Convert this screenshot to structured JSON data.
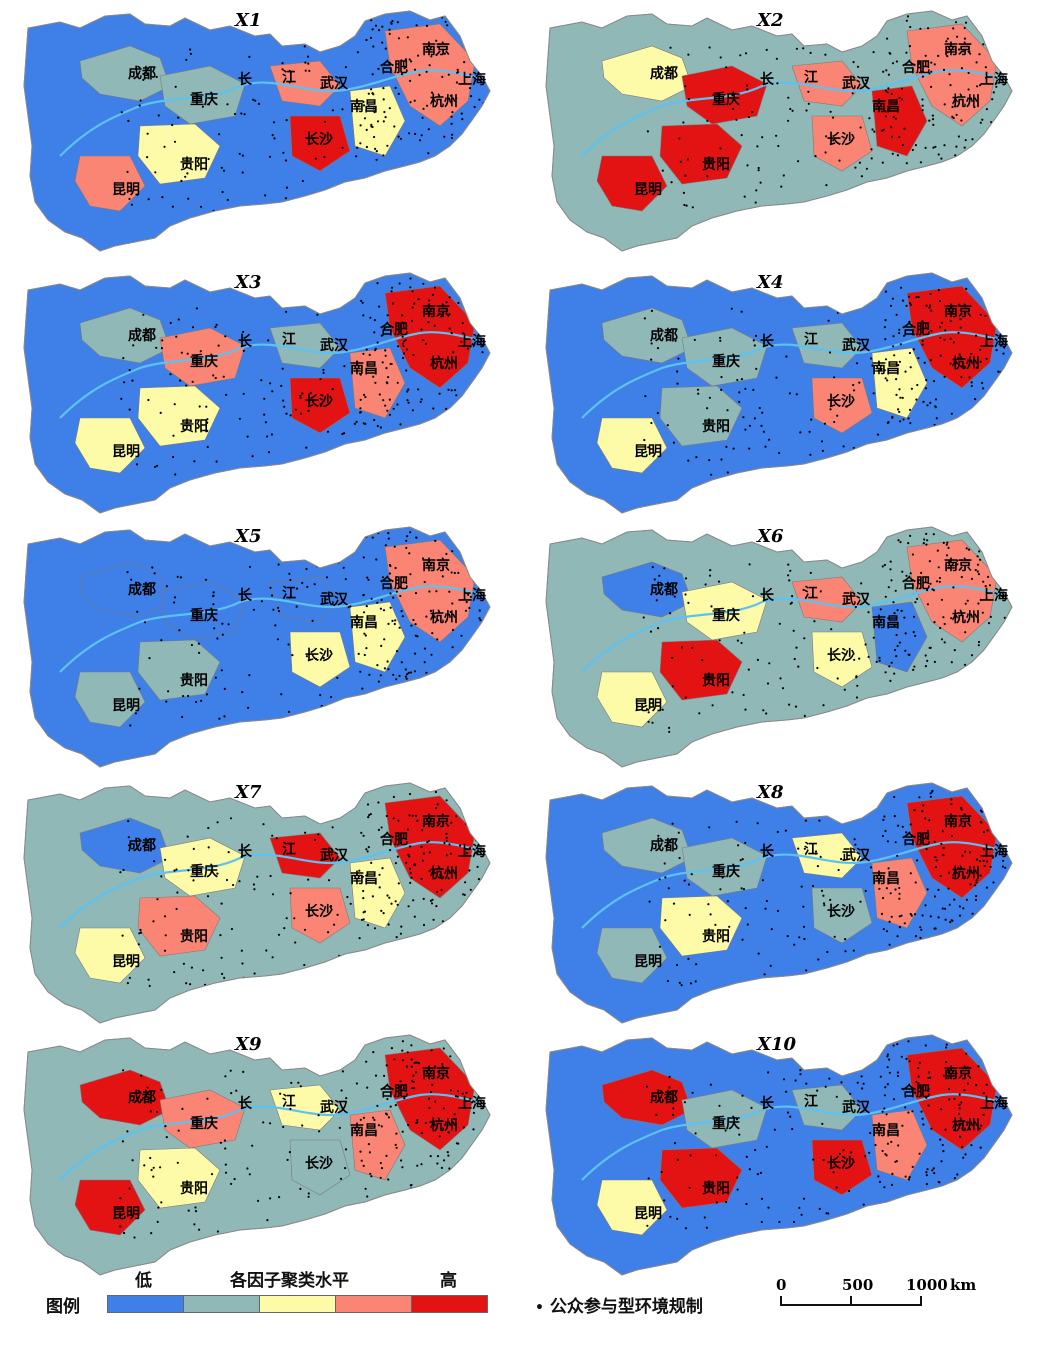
{
  "colors": {
    "low": "#3f7fe8",
    "mid_low": "#8fb8b7",
    "mid": "#fdfba7",
    "mid_high": "#fa8575",
    "high": "#e31313",
    "river": "#5cc2f2",
    "border": "#7b7b7b",
    "dot": "#000000"
  },
  "cities": [
    "成都",
    "重庆",
    "贵阳",
    "昆明",
    "长沙",
    "武汉",
    "南昌",
    "合肥",
    "南京",
    "杭州",
    "上海"
  ],
  "river_label": [
    "长",
    "江"
  ],
  "panels": [
    {
      "title": "X1",
      "base": "low",
      "patches": [
        "mid_low",
        "mid_low",
        "mid",
        "mid_high",
        "mid_high",
        "high",
        "mid",
        "mid_high"
      ]
    },
    {
      "title": "X2",
      "base": "mid_low",
      "patches": [
        "mid",
        "high",
        "high",
        "high",
        "mid_high",
        "mid_high",
        "high",
        "mid_high"
      ]
    },
    {
      "title": "X3",
      "base": "low",
      "patches": [
        "mid_low",
        "mid_high",
        "mid",
        "mid",
        "mid_low",
        "high",
        "mid_high",
        "high"
      ]
    },
    {
      "title": "X4",
      "base": "low",
      "patches": [
        "mid_low",
        "mid_low",
        "mid_low",
        "mid",
        "mid_low",
        "mid_high",
        "mid",
        "high"
      ]
    },
    {
      "title": "X5",
      "base": "low",
      "patches": [
        "low",
        "low",
        "mid_low",
        "mid_low",
        "low",
        "mid",
        "mid",
        "mid_high"
      ]
    },
    {
      "title": "X6",
      "base": "mid_low",
      "patches": [
        "low",
        "mid",
        "high",
        "mid",
        "mid_high",
        "mid",
        "low",
        "mid_high"
      ]
    },
    {
      "title": "X7",
      "base": "mid_low",
      "patches": [
        "low",
        "mid",
        "mid_high",
        "mid",
        "high",
        "mid_high",
        "mid",
        "high"
      ]
    },
    {
      "title": "X8",
      "base": "low",
      "patches": [
        "mid_low",
        "mid_low",
        "mid",
        "mid_low",
        "mid",
        "mid_low",
        "mid_high",
        "high"
      ]
    },
    {
      "title": "X9",
      "base": "mid_low",
      "patches": [
        "high",
        "mid_high",
        "mid",
        "high",
        "mid",
        "mid_low",
        "mid_high",
        "high"
      ]
    },
    {
      "title": "X10",
      "base": "low",
      "patches": [
        "high",
        "mid_low",
        "high",
        "mid",
        "mid_low",
        "high",
        "mid_high",
        "high"
      ]
    }
  ],
  "legend": {
    "title": "图例",
    "low_label": "低",
    "center_label": "各因子聚类水平",
    "high_label": "高",
    "classes": [
      "low",
      "mid_low",
      "mid",
      "mid_high",
      "high"
    ],
    "dot_label": "公众参与型环境规制"
  },
  "scale_bar": {
    "ticks": [
      "0",
      "500",
      "1000"
    ],
    "unit": "km"
  }
}
